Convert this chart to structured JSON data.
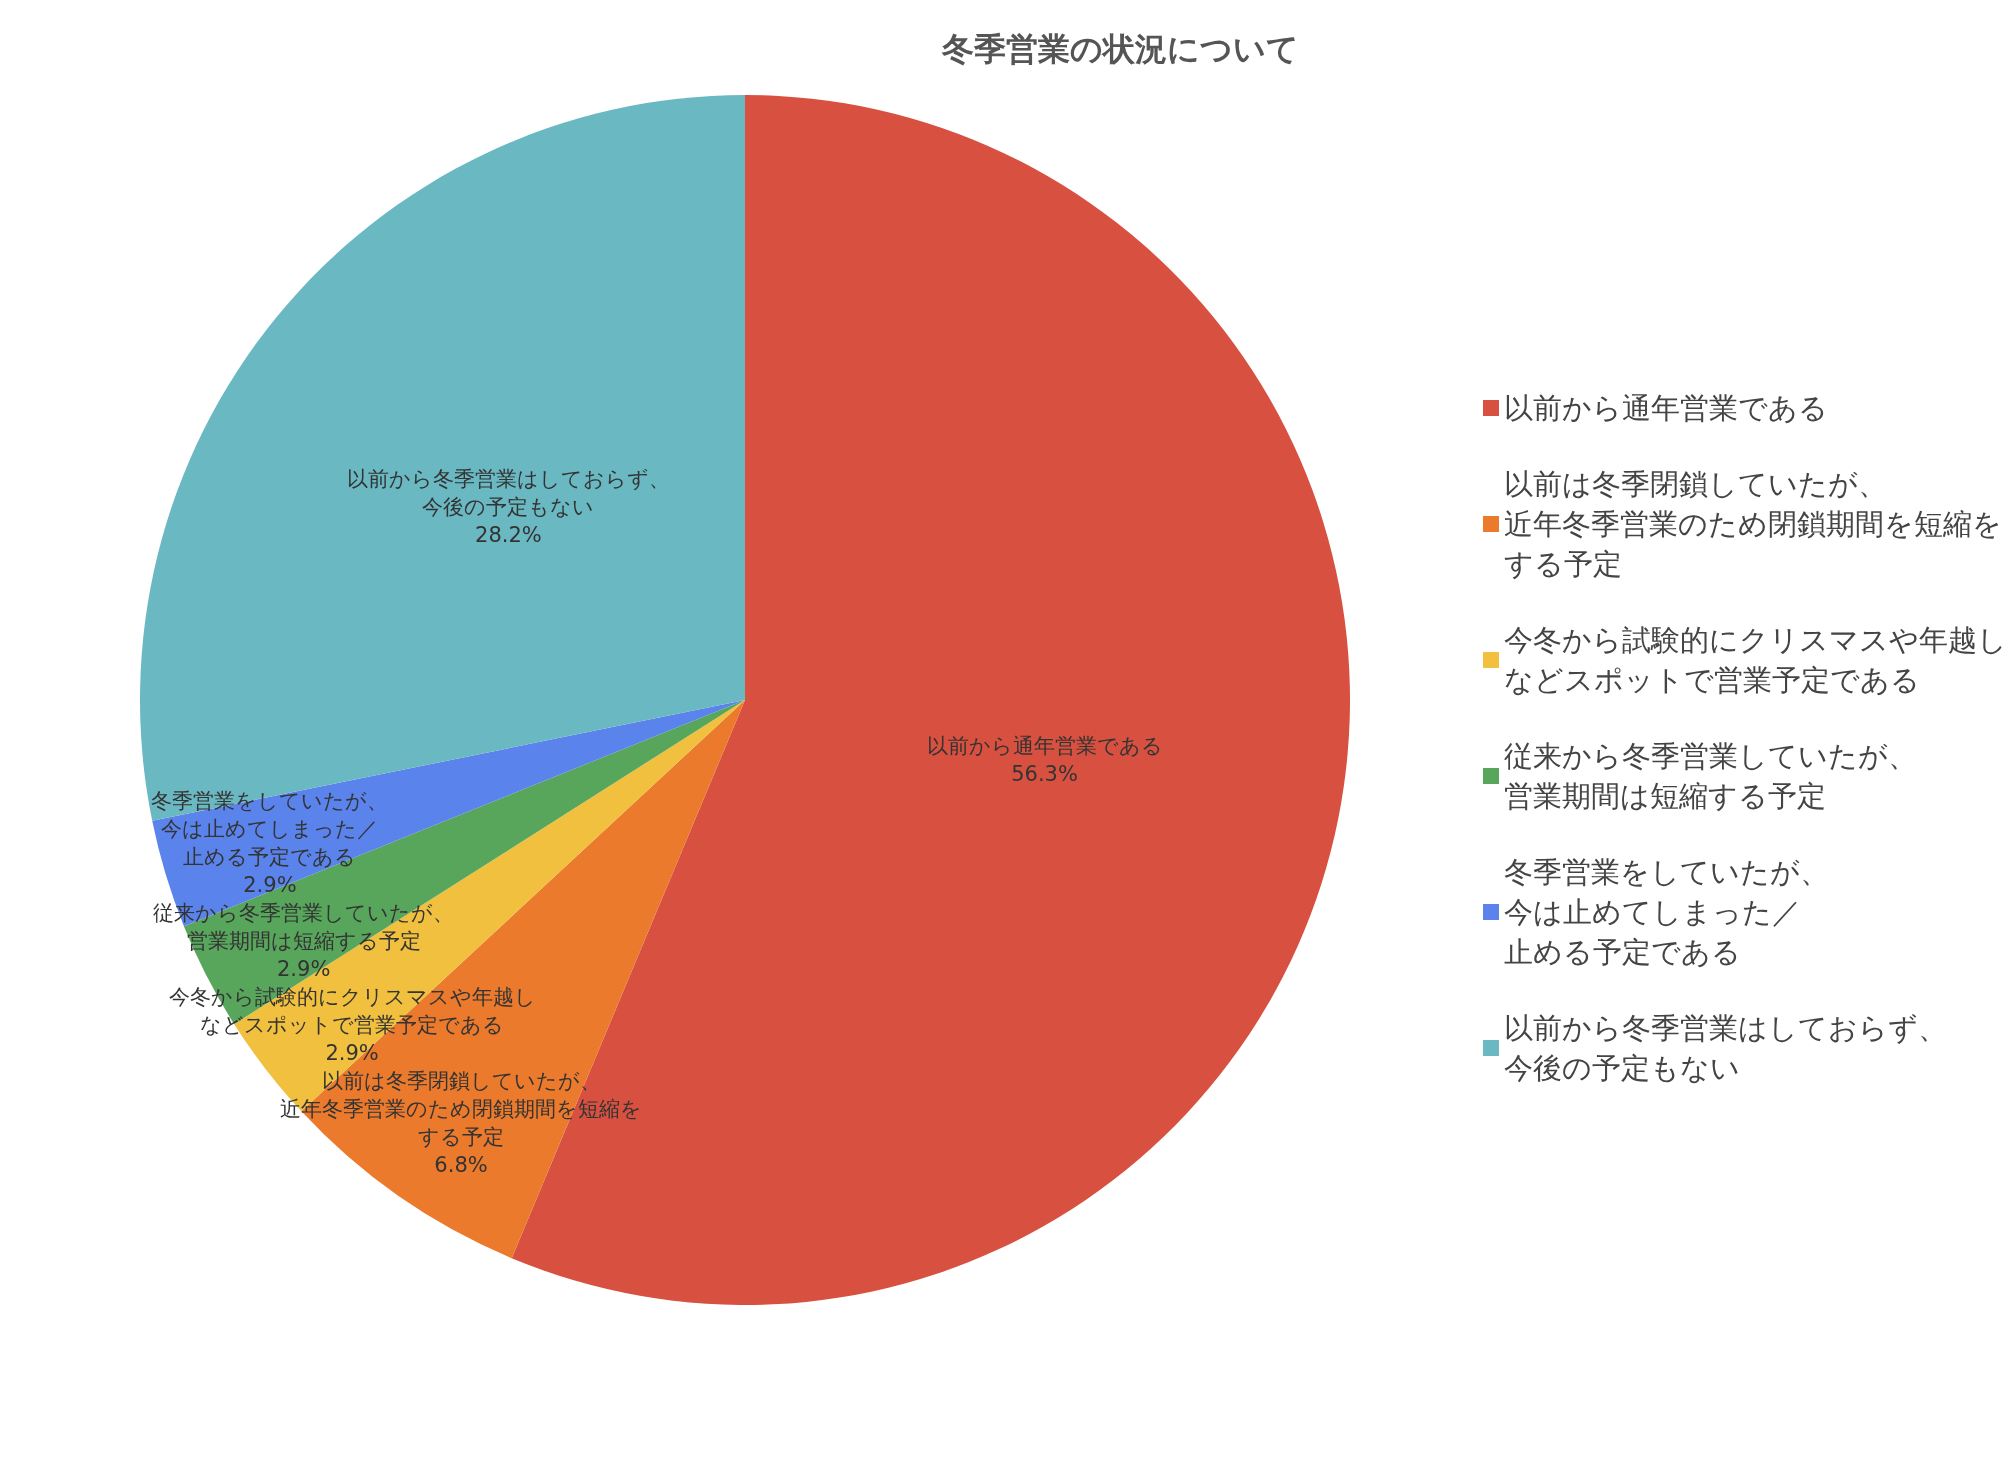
{
  "chart_data": {
    "type": "pie",
    "title": "冬季営業の状況について",
    "categories": [
      "以前から通年営業である",
      "以前は冬季閉鎖していたが、近年冬季営業のため閉鎖期間を短縮をする予定",
      "今冬から試験的にクリスマスや年越しなどスポットで営業予定である",
      "従来から冬季営業していたが、営業期間は短縮する予定",
      "冬季営業をしていたが、今は止めてしまった／止める予定である",
      "以前から冬季営業はしておらず、今後の予定もない"
    ],
    "values": [
      56.3,
      6.8,
      2.9,
      2.9,
      2.9,
      28.2
    ],
    "colors": [
      "#d85140",
      "#eb7a2d",
      "#f0c03e",
      "#58a55c",
      "#5a83ec",
      "#6ab8c2"
    ],
    "value_labels": [
      "56.3%",
      "6.8%",
      "2.9%",
      "2.9%",
      "2.9%",
      "28.2%"
    ],
    "legend": "right"
  }
}
